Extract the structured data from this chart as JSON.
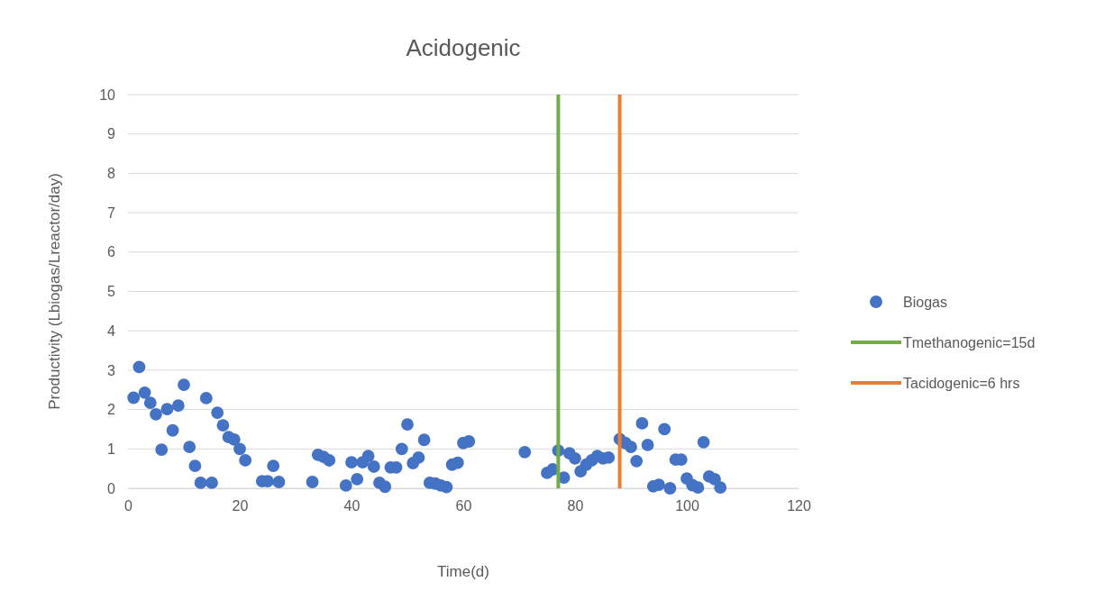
{
  "chart_data": {
    "type": "scatter",
    "title": "Acidogenic",
    "xlabel": "Time(d)",
    "ylabel": "Productivity (Lbiogas/Lreactor/day)",
    "xlim": [
      0,
      120
    ],
    "xticks": [
      0,
      20,
      40,
      60,
      80,
      100,
      120
    ],
    "ylim": [
      0,
      10
    ],
    "yticks": [
      0,
      1,
      2,
      3,
      4,
      5,
      6,
      7,
      8,
      9,
      10
    ],
    "grid": "y",
    "legend": "right",
    "series": [
      {
        "name": "Biogas",
        "color": "#4472c4",
        "marker": "circle",
        "x": [
          1,
          2,
          3,
          4,
          5,
          6,
          7,
          8,
          9,
          10,
          11,
          12,
          13,
          14,
          15,
          16,
          17,
          18,
          19,
          20,
          21,
          24,
          25,
          26,
          27,
          33,
          34,
          35,
          36,
          39,
          40,
          41,
          42,
          43,
          44,
          45,
          46,
          47,
          48,
          49,
          50,
          51,
          52,
          53,
          54,
          55,
          56,
          57,
          58,
          59,
          60,
          61,
          71,
          75,
          76,
          77,
          78,
          79,
          80,
          81,
          82,
          83,
          84,
          85,
          86,
          88,
          89,
          90,
          91,
          92,
          93,
          94,
          95,
          96,
          97,
          98,
          99,
          100,
          101,
          102,
          103,
          104,
          105,
          106
        ],
        "values": [
          2.3,
          3.08,
          2.43,
          2.17,
          1.88,
          0.98,
          2.01,
          1.47,
          2.1,
          2.63,
          1.05,
          0.57,
          0.14,
          2.29,
          0.14,
          1.92,
          1.6,
          1.3,
          1.24,
          1.0,
          0.71,
          0.18,
          0.18,
          0.57,
          0.16,
          0.16,
          0.85,
          0.8,
          0.71,
          0.07,
          0.66,
          0.23,
          0.66,
          0.82,
          0.55,
          0.14,
          0.04,
          0.53,
          0.53,
          1.0,
          1.62,
          0.64,
          0.78,
          1.23,
          0.14,
          0.12,
          0.07,
          0.03,
          0.6,
          0.65,
          1.15,
          1.19,
          0.92,
          0.39,
          0.48,
          0.96,
          0.27,
          0.89,
          0.76,
          0.43,
          0.6,
          0.71,
          0.82,
          0.76,
          0.78,
          1.25,
          1.15,
          1.05,
          0.69,
          1.65,
          1.1,
          0.05,
          0.09,
          1.5,
          0.0,
          0.73,
          0.73,
          0.25,
          0.08,
          0.02,
          1.17,
          0.3,
          0.23,
          0.02
        ]
      },
      {
        "name": "Tmethanogenic=15d",
        "type": "line",
        "marker": "none",
        "color": "#70ad47",
        "x": [
          77,
          77
        ],
        "values": [
          0,
          10
        ]
      },
      {
        "name": "Tacidogenic=6 hrs",
        "type": "line",
        "marker": "none",
        "color": "#ed7d31",
        "x": [
          88,
          88
        ],
        "values": [
          0,
          10
        ]
      }
    ]
  }
}
